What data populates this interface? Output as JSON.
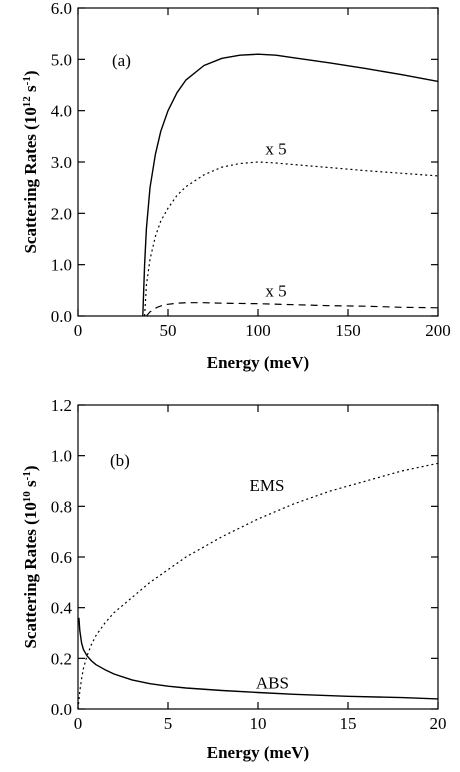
{
  "chart_data": [
    {
      "type": "line",
      "panel_label": "(a)",
      "xlabel": "Energy (meV)",
      "ylabel_main": "Scattering Rates (10",
      "ylabel_exp": "12",
      "ylabel_mid": " s",
      "ylabel_exp2": "-1",
      "ylabel_end": ")",
      "xlim": [
        0,
        200
      ],
      "ylim": [
        0,
        6
      ],
      "xticks": [
        0,
        50,
        100,
        150,
        200
      ],
      "xtick_labels": [
        "0",
        "50",
        "100",
        "150",
        "200"
      ],
      "yticks": [
        0,
        1,
        2,
        3,
        4,
        5,
        6
      ],
      "ytick_labels": [
        "0.0",
        "1.0",
        "2.0",
        "3.0",
        "4.0",
        "5.0",
        "6.0"
      ],
      "grid": false,
      "annotations": [
        {
          "text": "x 5",
          "x": 110,
          "y": 3.15
        },
        {
          "text": "x 5",
          "x": 110,
          "y": 0.38
        }
      ],
      "series": [
        {
          "style": "solid",
          "x": [
            36,
            37,
            38,
            40,
            43,
            46,
            50,
            55,
            60,
            70,
            80,
            90,
            100,
            110,
            120,
            140,
            160,
            180,
            200
          ],
          "y": [
            0,
            1.0,
            1.7,
            2.5,
            3.15,
            3.6,
            4.0,
            4.35,
            4.6,
            4.88,
            5.02,
            5.08,
            5.1,
            5.08,
            5.03,
            4.93,
            4.82,
            4.7,
            4.57
          ]
        },
        {
          "style": "dotted",
          "x": [
            37,
            38,
            40,
            43,
            46,
            50,
            55,
            60,
            70,
            80,
            90,
            100,
            110,
            120,
            140,
            160,
            180,
            200
          ],
          "y": [
            0,
            0.6,
            1.1,
            1.55,
            1.85,
            2.1,
            2.35,
            2.52,
            2.75,
            2.9,
            2.97,
            3.0,
            2.98,
            2.95,
            2.89,
            2.83,
            2.78,
            2.73
          ]
        },
        {
          "style": "dashed",
          "x": [
            38,
            40,
            44,
            48,
            55,
            60,
            70,
            80,
            100,
            120,
            140,
            160,
            180,
            200
          ],
          "y": [
            0,
            0.08,
            0.17,
            0.22,
            0.25,
            0.26,
            0.26,
            0.25,
            0.24,
            0.22,
            0.2,
            0.19,
            0.17,
            0.16
          ]
        }
      ]
    },
    {
      "type": "line",
      "panel_label": "(b)",
      "xlabel": "Energy (meV)",
      "ylabel_main": "Scattering Rates (10",
      "ylabel_exp": "10",
      "ylabel_mid": " s",
      "ylabel_exp2": "-1",
      "ylabel_end": ")",
      "xlim": [
        0,
        20
      ],
      "ylim": [
        0,
        1.2
      ],
      "xticks": [
        0,
        5,
        10,
        15,
        20
      ],
      "xtick_labels": [
        "0",
        "5",
        "10",
        "15",
        "20"
      ],
      "yticks": [
        0,
        0.2,
        0.4,
        0.6,
        0.8,
        1.0,
        1.2
      ],
      "ytick_labels": [
        "0.0",
        "0.2",
        "0.4",
        "0.6",
        "0.8",
        "1.0",
        "1.2"
      ],
      "grid": false,
      "annotations": [
        {
          "text": "EMS",
          "x": 10.5,
          "y": 0.86
        },
        {
          "text": "ABS",
          "x": 10.8,
          "y": 0.08
        }
      ],
      "series": [
        {
          "name": "ABS",
          "style": "solid",
          "x": [
            0.05,
            0.1,
            0.2,
            0.3,
            0.5,
            0.75,
            1,
            1.5,
            2,
            3,
            4,
            5,
            6,
            8,
            10,
            12,
            15,
            18,
            20
          ],
          "y": [
            0.36,
            0.31,
            0.26,
            0.235,
            0.21,
            0.19,
            0.175,
            0.155,
            0.138,
            0.115,
            0.1,
            0.09,
            0.083,
            0.073,
            0.065,
            0.058,
            0.05,
            0.045,
            0.04
          ]
        },
        {
          "name": "EMS",
          "style": "dotted",
          "x": [
            0,
            0.1,
            0.2,
            0.3,
            0.5,
            0.75,
            1,
            1.5,
            2,
            3,
            4,
            5,
            6,
            8,
            10,
            12,
            14,
            16,
            18,
            20
          ],
          "y": [
            0,
            0.07,
            0.12,
            0.16,
            0.21,
            0.255,
            0.29,
            0.34,
            0.38,
            0.44,
            0.5,
            0.55,
            0.6,
            0.68,
            0.75,
            0.81,
            0.86,
            0.9,
            0.94,
            0.97
          ]
        }
      ]
    }
  ]
}
